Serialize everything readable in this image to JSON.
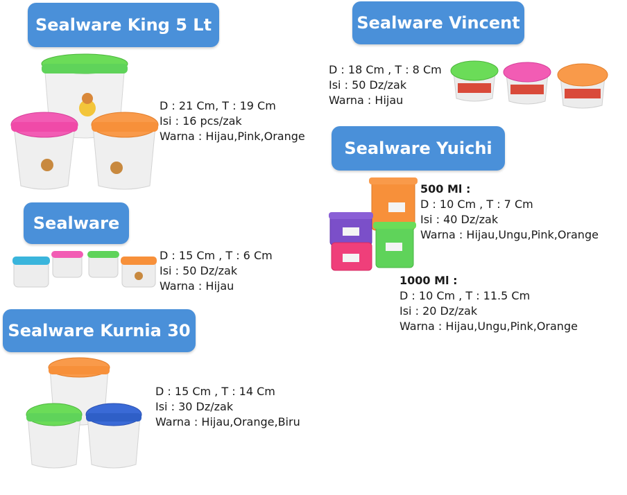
{
  "colors": {
    "badge": "#4a90d9",
    "green": "#5fd35a",
    "pink": "#f04aa8",
    "orange": "#f7903a",
    "blue": "#2f5fc7",
    "purple": "#7b4fc9",
    "cyan": "#3ab5dc"
  },
  "products": {
    "king": {
      "title": "Sealware King 5 Lt",
      "size": "D : 21 Cm, T : 19 Cm",
      "content": "Isi : 16 pcs/zak",
      "colors": "Warna : Hijau,Pink,Orange"
    },
    "vincent": {
      "title": "Sealware Vincent",
      "size": "D : 18 Cm , T : 8 Cm",
      "content": "Isi : 50 Dz/zak",
      "colors": "Warna  : Hijau"
    },
    "sealware": {
      "title": "Sealware",
      "size": "D : 15 Cm , T : 6 Cm",
      "content": "Isi : 50 Dz/zak",
      "colors": "Warna  : Hijau"
    },
    "yuichi": {
      "title": "Sealware Yuichi",
      "v500": {
        "label": "500 Ml :",
        "size": "D : 10 Cm , T : 7 Cm",
        "content": "Isi : 40 Dz/zak",
        "colors": "Warna  : Hijau,Ungu,Pink,Orange"
      },
      "v1000": {
        "label": "1000 Ml :",
        "size": "D : 10 Cm , T : 11.5 Cm",
        "content": "Isi : 20 Dz/zak",
        "colors": "Warna  : Hijau,Ungu,Pink,Orange"
      }
    },
    "kurnia": {
      "title": "Sealware Kurnia 30",
      "size": "D : 15 Cm , T : 14 Cm",
      "content": "Isi : 30 Dz/zak",
      "colors": "Warna  : Hijau,Orange,Biru"
    }
  }
}
